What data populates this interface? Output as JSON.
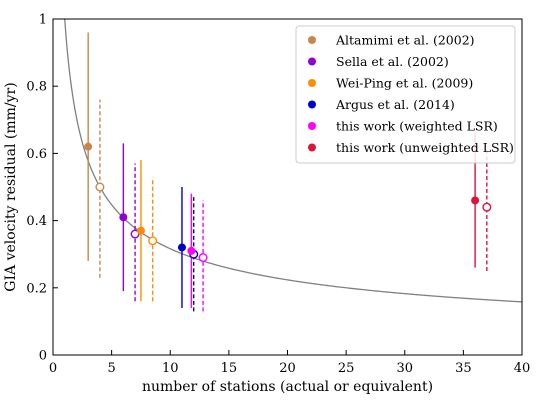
{
  "chart_data": {
    "type": "scatter",
    "xlabel": "number of stations (actual or equivalent)",
    "ylabel": "GIA velocity residual (mm/yr)",
    "xlim": [
      0,
      40
    ],
    "ylim": [
      0,
      1
    ],
    "xticks": [
      0,
      5,
      10,
      15,
      20,
      25,
      30,
      35,
      40
    ],
    "yticks": [
      0,
      0.2,
      0.4,
      0.6,
      0.8,
      1
    ],
    "ytick_labels": [
      "0",
      "0.2",
      "0.4",
      "0.6",
      "0.8",
      "1"
    ],
    "grid": false,
    "legend_position": "top-right",
    "curve": {
      "description_shown": false,
      "color": "#808080",
      "model": "y = a / sqrt(x)",
      "a": 1.0,
      "x_start": 1.0,
      "x_end": 40
    },
    "series": [
      {
        "name": "Altamimi et al. (2002)",
        "color": "#C8864B",
        "weighted": {
          "x": 3,
          "y": 0.62,
          "low": 0.28,
          "high": 0.96
        },
        "unweighted": {
          "x": 4,
          "y": 0.5,
          "low": 0.23,
          "high": 0.76
        }
      },
      {
        "name": "Sella et al. (2002)",
        "color": "#9400D3",
        "weighted": {
          "x": 6,
          "y": 0.41,
          "low": 0.19,
          "high": 0.63
        },
        "unweighted": {
          "x": 7,
          "y": 0.36,
          "low": 0.16,
          "high": 0.57
        }
      },
      {
        "name": "Wei-Ping et al. (2009)",
        "color": "#FF8C00",
        "weighted": {
          "x": 7.5,
          "y": 0.37,
          "low": 0.16,
          "high": 0.58
        },
        "unweighted": {
          "x": 8.5,
          "y": 0.34,
          "low": 0.16,
          "high": 0.52
        }
      },
      {
        "name": "Argus et al. (2014)",
        "color": "#0000CD",
        "weighted": {
          "x": 11,
          "y": 0.32,
          "low": 0.14,
          "high": 0.5
        },
        "unweighted": {
          "x": 12,
          "y": 0.3,
          "low": 0.13,
          "high": 0.47
        }
      },
      {
        "name": "this work (weighted LSR)",
        "color": "#FF00FF",
        "weighted": {
          "x": 11.8,
          "y": 0.31,
          "low": 0.14,
          "high": 0.48
        },
        "unweighted": {
          "x": 12.8,
          "y": 0.29,
          "low": 0.13,
          "high": 0.46
        }
      },
      {
        "name": "this work (unweighted LSR)",
        "color": "#DC143C",
        "weighted": {
          "x": 36,
          "y": 0.46,
          "low": 0.26,
          "high": 0.66
        },
        "unweighted": {
          "x": 37,
          "y": 0.44,
          "low": 0.25,
          "high": 0.62
        }
      }
    ]
  }
}
